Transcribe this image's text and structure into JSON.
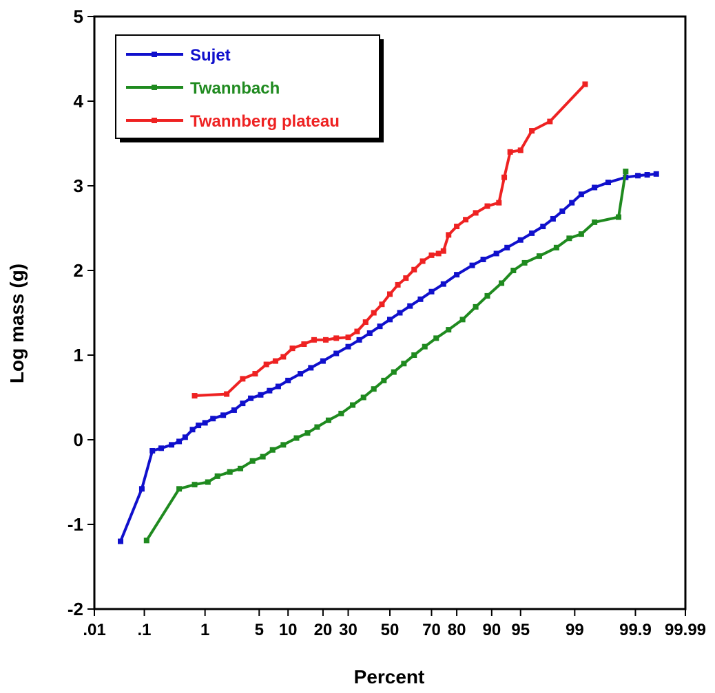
{
  "chart_data": {
    "type": "line",
    "title": "",
    "xlabel": "Percent",
    "ylabel": "Log mass (g)",
    "x_scale": "probability",
    "x_ticks": [
      ".01",
      ".1",
      "1",
      "5",
      "10",
      "20",
      "30",
      "50",
      "70",
      "80",
      "90",
      "95",
      "99",
      "99.9",
      "99.99"
    ],
    "x_tick_values": [
      0.01,
      0.1,
      1,
      5,
      10,
      20,
      30,
      50,
      70,
      80,
      90,
      95,
      99,
      99.9,
      99.99
    ],
    "xlim": [
      0.01,
      99.99
    ],
    "y_ticks": [
      "-2",
      "-1",
      "0",
      "1",
      "2",
      "3",
      "4",
      "5"
    ],
    "ylim": [
      -2,
      5
    ],
    "grid": false,
    "legend_position": "top-left",
    "series": [
      {
        "name": "Sujet",
        "color": "#1010cc",
        "x": [
          0.035,
          0.09,
          0.14,
          0.2,
          0.3,
          0.4,
          0.5,
          0.65,
          0.8,
          1.0,
          1.3,
          1.8,
          2.5,
          3.2,
          4.0,
          5.2,
          6.5,
          8.0,
          10,
          13,
          16,
          20,
          25,
          30,
          35,
          40,
          45,
          50,
          55,
          60,
          65,
          70,
          75,
          80,
          85,
          88,
          91,
          93,
          95,
          96.3,
          97.3,
          98,
          98.5,
          98.9,
          99.2,
          99.5,
          99.7,
          99.85,
          99.91,
          99.94,
          99.96
        ],
        "y": [
          -1.2,
          -0.58,
          -0.13,
          -0.1,
          -0.06,
          -0.02,
          0.03,
          0.12,
          0.17,
          0.2,
          0.25,
          0.29,
          0.35,
          0.43,
          0.49,
          0.53,
          0.58,
          0.63,
          0.7,
          0.78,
          0.85,
          0.93,
          1.02,
          1.1,
          1.18,
          1.26,
          1.34,
          1.42,
          1.5,
          1.58,
          1.66,
          1.75,
          1.84,
          1.95,
          2.06,
          2.13,
          2.2,
          2.27,
          2.36,
          2.44,
          2.52,
          2.61,
          2.7,
          2.8,
          2.9,
          2.98,
          3.04,
          3.1,
          3.12,
          3.13,
          3.14
        ]
      },
      {
        "name": "Twannbach",
        "color": "#1f8a1f",
        "x": [
          0.11,
          0.4,
          0.7,
          1.1,
          1.5,
          2.2,
          3.0,
          4.2,
          5.5,
          7,
          9,
          12,
          15,
          18,
          22,
          27,
          32,
          37,
          42,
          47,
          52,
          57,
          62,
          67,
          72,
          77,
          82,
          86,
          89,
          92,
          94,
          95.5,
          97,
          98.2,
          98.8,
          99.2,
          99.5,
          99.8,
          99.85
        ],
        "y": [
          -1.19,
          -0.58,
          -0.53,
          -0.5,
          -0.43,
          -0.38,
          -0.34,
          -0.25,
          -0.2,
          -0.12,
          -0.06,
          0.02,
          0.08,
          0.15,
          0.23,
          0.31,
          0.41,
          0.5,
          0.6,
          0.7,
          0.8,
          0.9,
          1.0,
          1.1,
          1.2,
          1.3,
          1.42,
          1.57,
          1.7,
          1.85,
          2.0,
          2.09,
          2.17,
          2.27,
          2.38,
          2.43,
          2.57,
          2.63,
          3.17
        ]
      },
      {
        "name": "Twannberg plateau",
        "color": "#ee2222",
        "x": [
          0.7,
          2.0,
          3.2,
          4.5,
          6.0,
          7.5,
          9.0,
          11,
          14,
          17,
          21,
          25,
          30,
          34,
          38,
          42,
          46,
          50,
          54,
          58,
          62,
          66,
          70,
          73,
          75,
          77,
          80,
          83,
          86,
          89,
          91.5,
          92.5,
          93.5,
          95,
          96.3,
          97.8,
          99.3
        ],
        "y": [
          0.52,
          0.54,
          0.72,
          0.78,
          0.89,
          0.93,
          0.98,
          1.08,
          1.13,
          1.18,
          1.18,
          1.2,
          1.21,
          1.28,
          1.39,
          1.5,
          1.6,
          1.72,
          1.83,
          1.91,
          2.01,
          2.11,
          2.18,
          2.2,
          2.23,
          2.42,
          2.52,
          2.6,
          2.68,
          2.76,
          2.8,
          3.1,
          3.4,
          3.42,
          3.65,
          3.76,
          4.2
        ]
      }
    ]
  }
}
